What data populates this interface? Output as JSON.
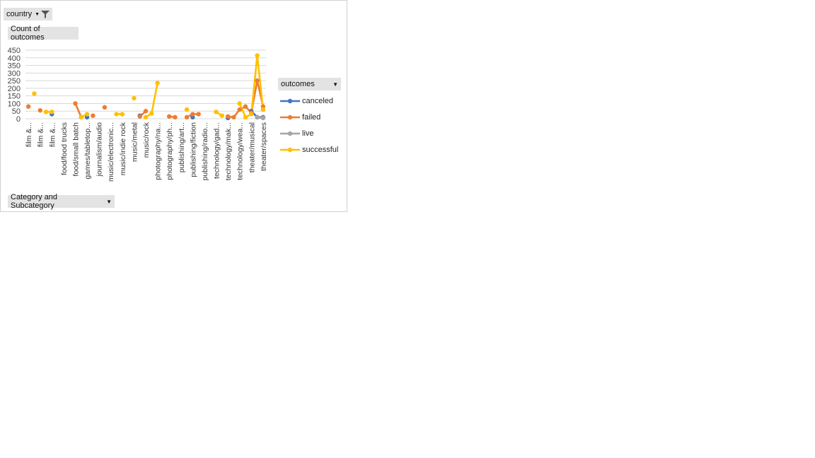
{
  "filter": {
    "label": "country",
    "icon": "filter-icon"
  },
  "value_field": {
    "label": "Count of outcomes"
  },
  "axis_field": {
    "label": "Category and Subcategory",
    "icon": "chevron-down-icon"
  },
  "legend_field": {
    "label": "outcomes",
    "icon": "chevron-down-icon"
  },
  "colors": {
    "canceled": "#4472c4",
    "failed": "#ed7d31",
    "live": "#a5a5a5",
    "successful": "#ffc000"
  },
  "chart_data": {
    "type": "line",
    "ylim": [
      0,
      450
    ],
    "yticks": [
      0,
      50,
      100,
      150,
      200,
      250,
      300,
      350,
      400,
      450
    ],
    "tick_labels": [
      "film &...",
      "film &...",
      "film &...",
      "food/food trucks",
      "food/small batch",
      "games/tabletop...",
      "journalism/audio",
      "music/electronic...",
      "music/indie rock",
      "music/metal",
      "music/rock",
      "photography/na...",
      "photography/ph...",
      "publishing/art...",
      "publishing/fiction",
      "publishing/radio...",
      "technology/gad...",
      "technology/mak...",
      "technology/wea...",
      "theater/musical",
      "theater/spaces"
    ],
    "x": [
      1,
      2,
      3,
      4,
      5,
      6,
      7,
      8,
      9,
      10,
      11,
      12,
      13,
      14,
      15,
      16,
      17,
      18,
      19,
      20,
      21,
      22,
      23,
      24,
      25,
      26,
      27,
      28,
      29,
      30,
      31,
      32,
      33,
      34,
      35,
      36,
      37,
      38,
      39,
      40,
      41
    ],
    "series": [
      {
        "name": "canceled",
        "values": [
          null,
          null,
          null,
          null,
          30,
          null,
          null,
          null,
          null,
          null,
          10,
          null,
          null,
          null,
          null,
          null,
          null,
          null,
          null,
          20,
          null,
          null,
          null,
          null,
          null,
          null,
          null,
          null,
          10,
          null,
          null,
          null,
          null,
          null,
          5,
          null,
          null,
          null,
          50,
          10,
          10
        ]
      },
      {
        "name": "failed",
        "values": [
          80,
          null,
          55,
          null,
          null,
          null,
          null,
          null,
          100,
          10,
          null,
          20,
          null,
          75,
          null,
          null,
          null,
          null,
          null,
          15,
          50,
          null,
          null,
          null,
          15,
          10,
          null,
          10,
          30,
          30,
          null,
          null,
          null,
          null,
          15,
          10,
          60,
          80,
          40,
          250,
          80
        ]
      },
      {
        "name": "live",
        "values": [
          null,
          null,
          null,
          null,
          null,
          null,
          null,
          null,
          null,
          null,
          null,
          null,
          null,
          null,
          null,
          null,
          null,
          null,
          null,
          null,
          null,
          null,
          null,
          null,
          null,
          null,
          null,
          null,
          null,
          null,
          null,
          null,
          null,
          null,
          null,
          null,
          null,
          null,
          null,
          10,
          5
        ]
      },
      {
        "name": "successful",
        "values": [
          null,
          165,
          null,
          45,
          45,
          null,
          null,
          null,
          null,
          10,
          30,
          null,
          null,
          null,
          null,
          30,
          30,
          null,
          135,
          null,
          10,
          35,
          235,
          null,
          null,
          null,
          null,
          60,
          null,
          null,
          null,
          null,
          45,
          20,
          null,
          null,
          100,
          10,
          30,
          415,
          60
        ]
      }
    ]
  }
}
